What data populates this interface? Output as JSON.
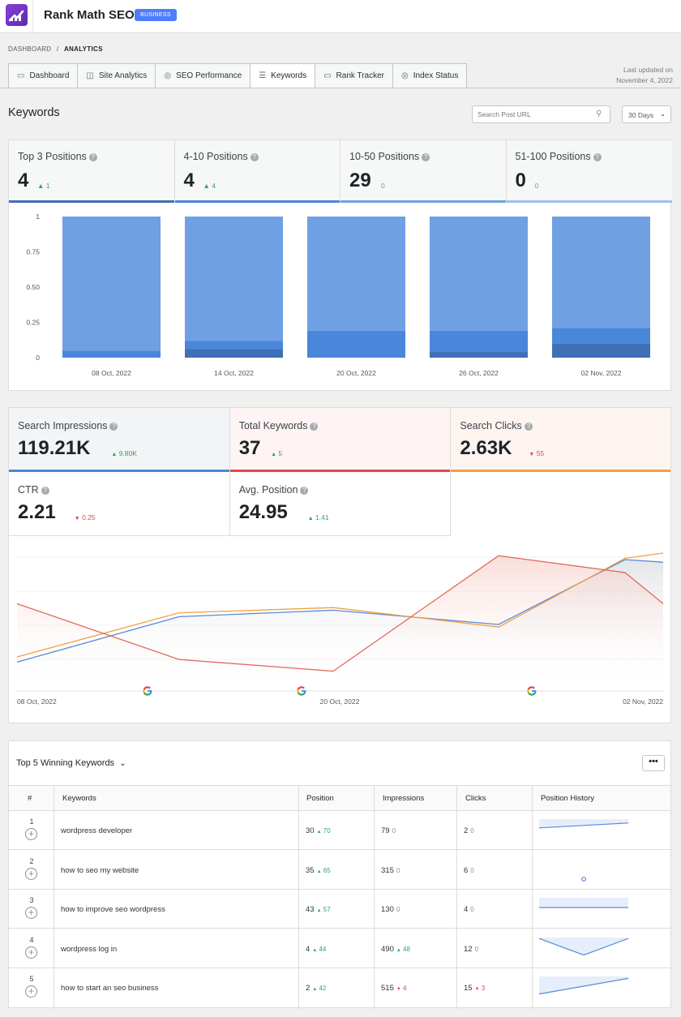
{
  "header": {
    "app_title": "Rank Math SEO",
    "badge": "BUSINESS"
  },
  "breadcrumb": {
    "root": "DASHBOARD",
    "sep": "/",
    "current": "ANALYTICS"
  },
  "tabs": [
    {
      "label": "Dashboard",
      "icon": "monitor-icon"
    },
    {
      "label": "Site Analytics",
      "icon": "chart-icon"
    },
    {
      "label": "SEO Performance",
      "icon": "target-icon"
    },
    {
      "label": "Keywords",
      "icon": "list-icon"
    },
    {
      "label": "Rank Tracker",
      "icon": "monitor-icon"
    },
    {
      "label": "Index Status",
      "icon": "target-icon"
    }
  ],
  "updated": {
    "line1": "Last updated on",
    "line2": "November 4, 2022"
  },
  "page": {
    "title": "Keywords",
    "search_placeholder": "Search Post URL",
    "range": "30 Days"
  },
  "positions": [
    {
      "label": "Top 3 Positions",
      "value": "4",
      "delta": "1",
      "dir": "up",
      "color": "#3f6fb5"
    },
    {
      "label": "4-10 Positions",
      "value": "4",
      "delta": "4",
      "dir": "up",
      "color": "#4a86d9"
    },
    {
      "label": "10-50 Positions",
      "value": "29",
      "delta": "0",
      "dir": "zero",
      "color": "#6fa0e3"
    },
    {
      "label": "51-100 Positions",
      "value": "0",
      "delta": "0",
      "dir": "zero",
      "color": "#9ebfee"
    }
  ],
  "chart_data": [
    {
      "type": "bar",
      "stacked": true,
      "categories": [
        "08 Oct, 2022",
        "14 Oct, 2022",
        "20 Oct, 2022",
        "26 Oct, 2022",
        "02 Nov, 2022"
      ],
      "yticks": [
        "1",
        "0.75",
        "0.50",
        "0.25",
        "0"
      ],
      "ylim": [
        0,
        1
      ],
      "series": [
        {
          "name": "Top 3 Positions",
          "color": "#3f6fb5",
          "values": [
            0.0,
            0.06,
            0.0,
            0.04,
            0.1
          ]
        },
        {
          "name": "4-10 Positions",
          "color": "#4a86d9",
          "values": [
            0.05,
            0.06,
            0.19,
            0.15,
            0.11
          ]
        },
        {
          "name": "10-50 Positions",
          "color": "#6fa0e3",
          "values": [
            0.95,
            0.88,
            0.81,
            0.81,
            0.79
          ]
        }
      ]
    },
    {
      "type": "line",
      "x": [
        "08 Oct, 2022",
        "14 Oct, 2022",
        "20 Oct, 2022",
        "26 Oct, 2022",
        "30 Oct, 2022",
        "02 Nov, 2022"
      ],
      "xlabels": [
        "08 Oct, 2022",
        "20 Oct, 2022",
        "02 Nov, 2022"
      ],
      "series": [
        {
          "name": "Search Impressions",
          "color": "#5a8ad6",
          "values": [
            0.16,
            0.51,
            0.56,
            0.45,
            0.95,
            0.93
          ]
        },
        {
          "name": "Search Clicks",
          "color": "#f0a044",
          "values": [
            0.2,
            0.54,
            0.58,
            0.43,
            0.96,
            1.0
          ]
        },
        {
          "name": "Total Keywords",
          "color": "#e06a5a",
          "values": [
            0.61,
            0.18,
            0.09,
            0.98,
            0.85,
            0.61
          ]
        }
      ]
    }
  ],
  "metrics": [
    {
      "label": "Search Impressions",
      "value": "119.21K",
      "delta": "9.80K",
      "dir": "up",
      "color": "#4a86d9",
      "bg": "#f3f4f6"
    },
    {
      "label": "Total Keywords",
      "value": "37",
      "delta": "5",
      "dir": "up",
      "color": "#e0474c",
      "bg": "#fdf4f3"
    },
    {
      "label": "Search Clicks",
      "value": "2.63K",
      "delta": "55",
      "dir": "down",
      "color": "#f0a044",
      "bg": "#fdf4f0"
    },
    {
      "label": "CTR",
      "value": "2.21",
      "delta": "0.25",
      "dir": "down",
      "color": "",
      "bg": "#ffffff"
    },
    {
      "label": "Avg. Position",
      "value": "24.95",
      "delta": "1.41",
      "dir": "up",
      "color": "",
      "bg": "#ffffff"
    }
  ],
  "table": {
    "title": "Top 5 Winning Keywords",
    "more": "•••",
    "columns": [
      "#",
      "Keywords",
      "Position",
      "Impressions",
      "Clicks",
      "Position History"
    ],
    "rows": [
      {
        "num": "1",
        "keyword": "wordpress developer",
        "position": "30",
        "pos_delta": "70",
        "pos_dir": "up",
        "impressions": "79",
        "imp_delta": "0",
        "imp_dir": "zero",
        "clicks": "2",
        "clk_delta": "0",
        "clk_dir": "zero",
        "history": [
          0.55,
          0.8
        ]
      },
      {
        "num": "2",
        "keyword": "how to seo my website",
        "position": "35",
        "pos_delta": "65",
        "pos_dir": "up",
        "impressions": "315",
        "imp_delta": "0",
        "imp_dir": "zero",
        "clicks": "6",
        "clk_delta": "0",
        "clk_dir": "zero",
        "history": []
      },
      {
        "num": "3",
        "keyword": "how to improve seo wordpress",
        "position": "43",
        "pos_delta": "57",
        "pos_dir": "up",
        "impressions": "130",
        "imp_delta": "0",
        "imp_dir": "zero",
        "clicks": "4",
        "clk_delta": "0",
        "clk_dir": "zero",
        "history": [
          0.5,
          0.5
        ]
      },
      {
        "num": "4",
        "keyword": "wordpress log in",
        "position": "4",
        "pos_delta": "44",
        "pos_dir": "up",
        "impressions": "490",
        "imp_delta": "48",
        "imp_dir": "up",
        "clicks": "12",
        "clk_delta": "0",
        "clk_dir": "zero",
        "history": [
          0.95,
          0.1,
          0.95
        ]
      },
      {
        "num": "5",
        "keyword": "how to start an seo business",
        "position": "2",
        "pos_delta": "42",
        "pos_dir": "up",
        "impressions": "515",
        "imp_delta": "4",
        "imp_dir": "down",
        "clicks": "15",
        "clk_delta": "3",
        "clk_dir": "down",
        "history": [
          0.1,
          0.9
        ]
      }
    ]
  }
}
